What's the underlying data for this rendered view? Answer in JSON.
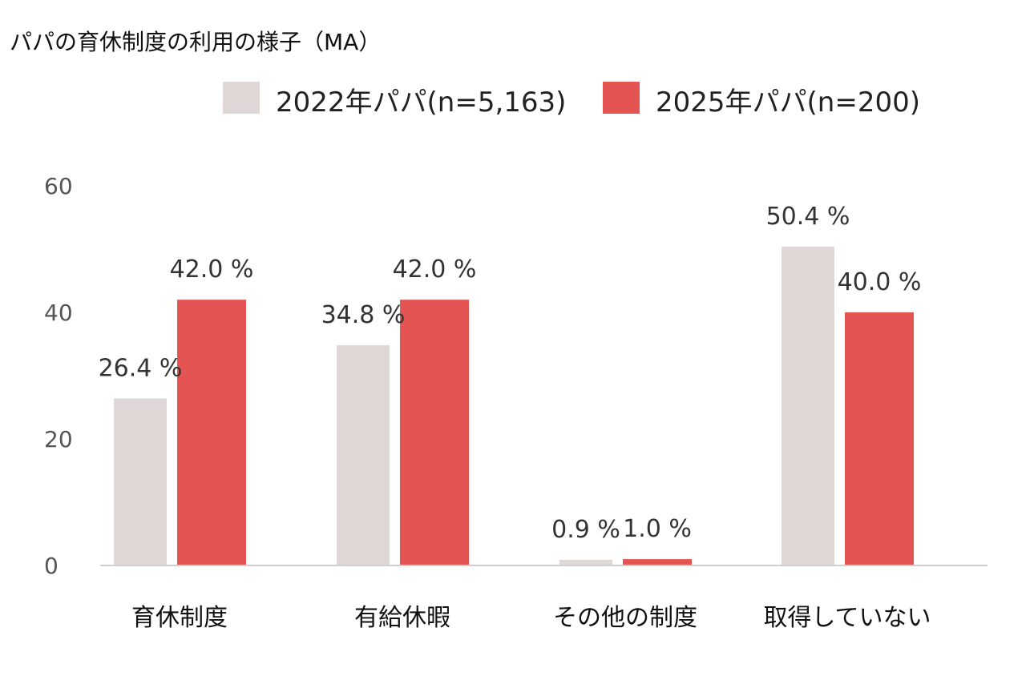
{
  "chart_data": {
    "type": "bar",
    "title": "パパの育休制度の利用の様子（MA）",
    "categories": [
      "育休制度",
      "有給休暇",
      "その他の制度",
      "取得していない"
    ],
    "series": [
      {
        "name": "2022年パパ(n=5,163)",
        "color": "#e0d8d6",
        "values": [
          26.4,
          34.8,
          0.9,
          50.4
        ],
        "labels": [
          "26.4 %",
          "34.8 %",
          "0.9 %",
          "50.4 %"
        ]
      },
      {
        "name": "2025年パパ(n=200)",
        "color": "#e35452",
        "values": [
          42.0,
          42.0,
          1.0,
          40.0
        ],
        "labels": [
          "42.0 %",
          "42.0 %",
          "1.0 %",
          "40.0 %"
        ]
      }
    ],
    "yticks": [
      "0",
      "20",
      "40",
      "60"
    ],
    "ylim": [
      0,
      60
    ],
    "xlabel": "",
    "ylabel": "",
    "legend_position": "top-right",
    "grid": false
  }
}
